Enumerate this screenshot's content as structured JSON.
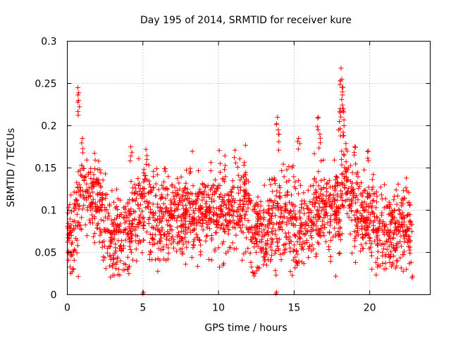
{
  "chart_data": {
    "type": "scatter",
    "title": "Day 195 of 2014, SRMTID for receiver kure",
    "xlabel": "GPS time / hours",
    "ylabel": "SRMTID / TECUs",
    "xlim": [
      0,
      24
    ],
    "ylim": [
      0,
      0.3
    ],
    "xticks": [
      0,
      5,
      10,
      15,
      20
    ],
    "xtick_labels": [
      "0",
      "5",
      "10",
      "15",
      "20"
    ],
    "yticks": [
      0,
      0.05,
      0.1,
      0.15,
      0.2,
      0.25,
      0.3
    ],
    "ytick_labels": [
      "0",
      "0.05",
      "0.1",
      "0.15",
      "0.2",
      "0.25",
      "0.3"
    ],
    "grid": true,
    "marker": "+",
    "color": "#ff0000",
    "trend": {
      "x": [
        0,
        0.3,
        0.5,
        0.8,
        1.0,
        1.3,
        1.6,
        2.0,
        2.4,
        2.8,
        3.2,
        3.6,
        4.0,
        4.4,
        5.0,
        5.4,
        6.0,
        7.0,
        8.0,
        9.0,
        10.0,
        11.0,
        11.8,
        12.5,
        13.0,
        13.5,
        14.0,
        14.5,
        15.0,
        15.5,
        16.0,
        16.5,
        17.0,
        17.5,
        18.0,
        18.3,
        18.6,
        19.0,
        19.5,
        20.0,
        20.5,
        21.0,
        21.5,
        22.0,
        22.5,
        22.8
      ],
      "y": [
        0.075,
        0.07,
        0.09,
        0.1,
        0.12,
        0.13,
        0.12,
        0.11,
        0.09,
        0.07,
        0.065,
        0.07,
        0.08,
        0.09,
        0.11,
        0.1,
        0.085,
        0.09,
        0.095,
        0.1,
        0.1,
        0.1,
        0.105,
        0.07,
        0.075,
        0.08,
        0.1,
        0.09,
        0.085,
        0.08,
        0.085,
        0.1,
        0.105,
        0.095,
        0.1,
        0.14,
        0.12,
        0.1,
        0.09,
        0.09,
        0.08,
        0.075,
        0.07,
        0.075,
        0.08,
        0.07
      ],
      "spread": 0.025
    },
    "peaks": [
      {
        "x": 0.7,
        "y": 0.245
      },
      {
        "x": 0.75,
        "y": 0.23
      },
      {
        "x": 1.0,
        "y": 0.185
      },
      {
        "x": 4.2,
        "y": 0.175
      },
      {
        "x": 5.2,
        "y": 0.172
      },
      {
        "x": 13.9,
        "y": 0.21
      },
      {
        "x": 14.0,
        "y": 0.19
      },
      {
        "x": 15.3,
        "y": 0.185
      },
      {
        "x": 16.6,
        "y": 0.21
      },
      {
        "x": 16.7,
        "y": 0.19
      },
      {
        "x": 18.1,
        "y": 0.268
      },
      {
        "x": 18.15,
        "y": 0.255
      },
      {
        "x": 18.2,
        "y": 0.24
      },
      {
        "x": 18.05,
        "y": 0.22
      },
      {
        "x": 18.25,
        "y": 0.22
      },
      {
        "x": 18.0,
        "y": 0.205
      },
      {
        "x": 18.3,
        "y": 0.2
      },
      {
        "x": 19.0,
        "y": 0.175
      },
      {
        "x": 19.9,
        "y": 0.17
      }
    ],
    "lows": [
      {
        "x": 5.0,
        "y": 0.001
      },
      {
        "x": 13.8,
        "y": 0.001
      },
      {
        "x": 4.0,
        "y": 0.03
      },
      {
        "x": 22.8,
        "y": 0.02
      },
      {
        "x": 10.3,
        "y": 0.035
      },
      {
        "x": 3.0,
        "y": 0.035
      },
      {
        "x": 15.2,
        "y": 0.035
      }
    ]
  }
}
